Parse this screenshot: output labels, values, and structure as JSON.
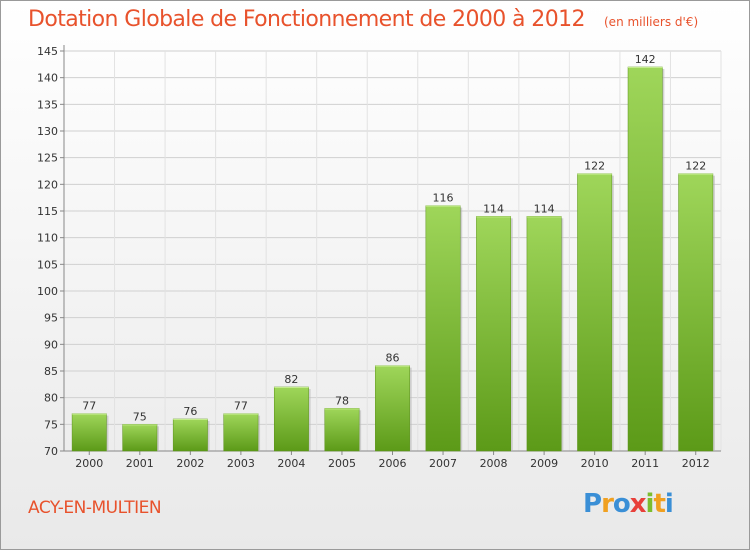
{
  "chart_data": {
    "type": "bar",
    "title": "Dotation Globale de Fonctionnement de 2000 à 2012",
    "subtitle": "(en milliers d'€)",
    "categories": [
      "2000",
      "2001",
      "2002",
      "2003",
      "2004",
      "2005",
      "2006",
      "2007",
      "2008",
      "2009",
      "2010",
      "2011",
      "2012"
    ],
    "values": [
      77,
      75,
      76,
      77,
      82,
      78,
      86,
      116,
      114,
      114,
      122,
      142,
      122
    ],
    "ylim": [
      70,
      145
    ],
    "yticks": [
      70,
      75,
      80,
      85,
      90,
      95,
      100,
      105,
      110,
      115,
      120,
      125,
      130,
      135,
      140,
      145
    ],
    "grid": true,
    "bar_color": "#7cbd2e"
  },
  "commune": "ACY-EN-MULTIEN",
  "logo": {
    "letters": [
      {
        "char": "P",
        "color": "#3a8fd6"
      },
      {
        "char": "r",
        "color": "#f0a020"
      },
      {
        "char": "o",
        "color": "#3a8fd6"
      },
      {
        "char": "x",
        "color": "#e8403a"
      },
      {
        "char": "i",
        "color": "#7cbd2e"
      },
      {
        "char": "t",
        "color": "#f0a020"
      },
      {
        "char": "i",
        "color": "#3a8fd6"
      }
    ]
  }
}
